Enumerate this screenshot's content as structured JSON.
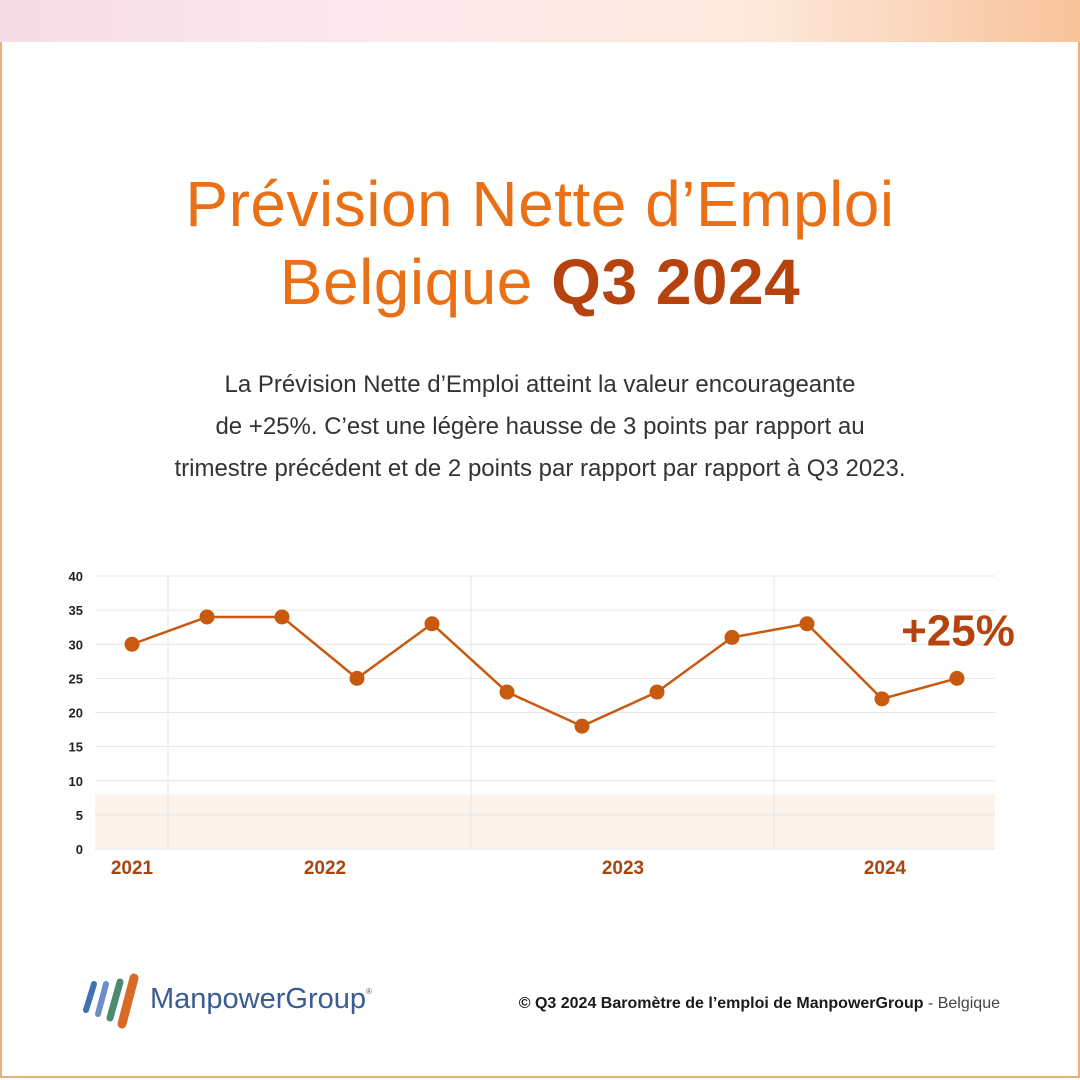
{
  "title": {
    "line1": "Prévision Nette d’Emploi",
    "line2_main": "Belgique",
    "line2_highlight": "Q3 2024"
  },
  "description": [
    "La Prévision Nette d’Emploi atteint la valeur encourageante",
    "de +25%. C’est une légère hausse de 3 points par rapport au",
    "trimestre précédent et de 2 points par rapport par rapport à Q3 2023."
  ],
  "chart_data": {
    "type": "line",
    "title": "",
    "xlabel": "",
    "ylabel": "",
    "ylim": [
      0,
      40
    ],
    "yticks": [
      "0",
      "5",
      "10",
      "15",
      "20",
      "25",
      "30",
      "35",
      "40"
    ],
    "year_labels": [
      "2021",
      "2022",
      "2023",
      "2024"
    ],
    "series": [
      {
        "name": "Prévision Nette d’Emploi",
        "values": [
          30,
          34,
          34,
          25,
          33,
          23,
          18,
          23,
          31,
          33,
          22,
          25
        ]
      }
    ],
    "shaded_band": [
      0,
      8
    ],
    "annotation": "+25%",
    "colors": {
      "line": "#c85a10",
      "point": "#c85a10",
      "annotation": "#b6420d",
      "year_label": "#a8460f",
      "band": "#fdf3ea",
      "grid": "#e6e6e6"
    }
  },
  "footer": {
    "brand": "ManpowerGroup",
    "brand_mark": "®",
    "copyright": "© Q3 2024 Baromètre de l’emploi de ManpowerGroup",
    "copyright_sep": " - ",
    "region": "Belgique"
  }
}
